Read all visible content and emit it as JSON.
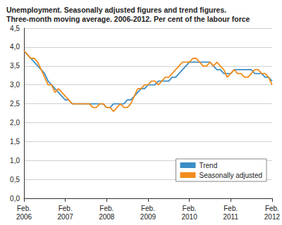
{
  "chart_data": {
    "type": "line",
    "title": "Unemployment. Seasonally adjusted figures and trend figures.\nThree-month moving average. 2006-2012. Per cent of the labour force",
    "categories": [
      "Feb.\n2006",
      null,
      null,
      null,
      null,
      null,
      null,
      null,
      null,
      null,
      null,
      null,
      "Feb.\n2007",
      null,
      null,
      null,
      null,
      null,
      null,
      null,
      null,
      null,
      null,
      null,
      "Feb.\n2008",
      null,
      null,
      null,
      null,
      null,
      null,
      null,
      null,
      null,
      null,
      null,
      "Feb.\n2009",
      null,
      null,
      null,
      null,
      null,
      null,
      null,
      null,
      null,
      null,
      null,
      "Feb.\n2010",
      null,
      null,
      null,
      null,
      null,
      null,
      null,
      null,
      null,
      null,
      null,
      "Feb.\n2011",
      null,
      null,
      null,
      null,
      null,
      null,
      null,
      null,
      null,
      null,
      null,
      "Feb.\n2012"
    ],
    "series": [
      {
        "name": "Trend",
        "color": "#3a8dc7",
        "values": [
          3.9,
          3.8,
          3.7,
          3.6,
          3.5,
          3.4,
          3.3,
          3.1,
          3.0,
          2.9,
          2.8,
          2.7,
          2.6,
          2.6,
          2.5,
          2.5,
          2.5,
          2.5,
          2.5,
          2.5,
          2.5,
          2.5,
          2.5,
          2.5,
          2.4,
          2.4,
          2.5,
          2.5,
          2.5,
          2.5,
          2.6,
          2.6,
          2.7,
          2.8,
          2.9,
          2.9,
          3.0,
          3.0,
          3.0,
          3.1,
          3.1,
          3.1,
          3.1,
          3.2,
          3.2,
          3.3,
          3.4,
          3.5,
          3.6,
          3.6,
          3.6,
          3.6,
          3.6,
          3.6,
          3.6,
          3.5,
          3.4,
          3.4,
          3.3,
          3.3,
          3.3,
          3.4,
          3.4,
          3.4,
          3.4,
          3.4,
          3.4,
          3.3,
          3.3,
          3.3,
          3.2,
          3.2,
          3.1
        ]
      },
      {
        "name": "Seasonally adjusted",
        "color": "#f28c1c",
        "values": [
          3.9,
          3.8,
          3.7,
          3.7,
          3.6,
          3.4,
          3.2,
          3.0,
          3.0,
          2.8,
          2.9,
          2.8,
          2.7,
          2.6,
          2.5,
          2.5,
          2.5,
          2.5,
          2.5,
          2.5,
          2.4,
          2.4,
          2.5,
          2.5,
          2.4,
          2.4,
          2.3,
          2.4,
          2.5,
          2.4,
          2.4,
          2.5,
          2.7,
          2.9,
          2.9,
          3.0,
          3.0,
          3.1,
          3.1,
          3.0,
          3.1,
          3.2,
          3.2,
          3.3,
          3.4,
          3.5,
          3.6,
          3.6,
          3.6,
          3.7,
          3.7,
          3.6,
          3.5,
          3.5,
          3.6,
          3.5,
          3.6,
          3.5,
          3.4,
          3.2,
          3.3,
          3.4,
          3.3,
          3.3,
          3.2,
          3.2,
          3.3,
          3.4,
          3.4,
          3.3,
          3.3,
          3.2,
          3.0
        ]
      }
    ],
    "ylim": [
      0,
      4.5
    ],
    "yticks": [
      {
        "value": 0,
        "label": "0,0"
      },
      {
        "value": 0.5,
        "label": "0,5"
      },
      {
        "value": 1,
        "label": "1,0"
      },
      {
        "value": 1.5,
        "label": "1,5"
      },
      {
        "value": 2,
        "label": "2,0"
      },
      {
        "value": 2.5,
        "label": "2,5"
      },
      {
        "value": 3,
        "label": "3,0"
      },
      {
        "value": 3.5,
        "label": "3,5"
      },
      {
        "value": 4,
        "label": "4,0"
      },
      {
        "value": 4.5,
        "label": "4,5"
      }
    ],
    "grid": true,
    "legend": "lower right"
  }
}
